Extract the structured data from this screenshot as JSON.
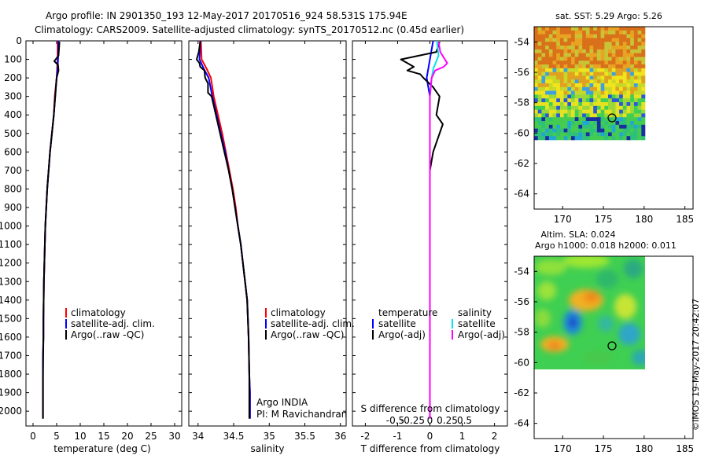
{
  "title_line1": "Argo profile: IN 2901350_193 12-May-2017 20170516_924 58.531S 175.94E",
  "title_line2": "Climatology: CARS2009. Satellite-adjusted climatology: synTS_20170512.nc (0.45d earlier)",
  "footer_stamp": "©IMOS 19-May-2017 20:42:07",
  "colors": {
    "climatology": "#ff0000",
    "satellite": "#0000ff",
    "argo": "#000000",
    "sal_satellite": "#00e5ee",
    "sal_argo": "#ff00ff"
  },
  "chart_data": [
    {
      "type": "line",
      "name": "temperature-profile",
      "xlabel": "temperature (deg C)",
      "xlim": [
        -1.5,
        31.5
      ],
      "xticks": [
        0,
        5,
        10,
        15,
        20,
        25,
        30
      ],
      "ylim": [
        0,
        2080
      ],
      "yticks": [
        0,
        100,
        200,
        300,
        400,
        500,
        600,
        700,
        800,
        900,
        1000,
        1100,
        1200,
        1300,
        1400,
        1500,
        1600,
        1700,
        1800,
        1900,
        2000
      ],
      "legend": [
        "climatology",
        "satellite-adj. clim.",
        "Argo(..raw -QC)"
      ],
      "series": [
        {
          "name": "climatology",
          "x": [
            5.2,
            5.2,
            5.1,
            5.0,
            4.6,
            4.4,
            4.0,
            3.6,
            3.3,
            3.0,
            2.8,
            2.6,
            2.5,
            2.4,
            2.3,
            2.2,
            2.2,
            2.1,
            2.1,
            2.1,
            2.1
          ],
          "y": [
            0,
            100,
            150,
            200,
            300,
            400,
            500,
            600,
            700,
            800,
            900,
            1000,
            1100,
            1200,
            1300,
            1500,
            1600,
            1700,
            1800,
            1900,
            2040
          ]
        },
        {
          "name": "satellite-adj. clim.",
          "x": [
            5.4,
            5.3,
            5.2,
            5.0,
            4.7,
            4.4,
            4.0,
            3.6,
            3.3,
            3.0,
            2.8,
            2.6,
            2.5,
            2.4,
            2.3,
            2.2,
            2.2,
            2.1,
            2.1,
            2.1
          ],
          "y": [
            0,
            100,
            150,
            200,
            300,
            400,
            500,
            600,
            700,
            800,
            900,
            1000,
            1100,
            1200,
            1300,
            1500,
            1600,
            1700,
            1800,
            2040
          ]
        },
        {
          "name": "Argo(..raw -QC)",
          "x": [
            5.6,
            5.4,
            4.5,
            5.3,
            5.4,
            5.0,
            4.7,
            4.4,
            4.0,
            3.6,
            3.3,
            3.0,
            2.8,
            2.6,
            2.5,
            2.4,
            2.3,
            2.2,
            2.2,
            2.1,
            2.1
          ],
          "y": [
            5,
            80,
            110,
            130,
            160,
            200,
            300,
            400,
            500,
            600,
            700,
            800,
            900,
            1000,
            1100,
            1200,
            1300,
            1500,
            1600,
            1800,
            2040
          ]
        }
      ]
    },
    {
      "type": "line",
      "name": "salinity-profile",
      "xlabel": "salinity",
      "xlim": [
        33.87,
        36.08
      ],
      "xticks": [
        34,
        34.5,
        35,
        35.5,
        36
      ],
      "ylim": [
        0,
        2080
      ],
      "legend": [
        "climatology",
        "satellite-adj. clim.",
        "Argo(..raw -QC)"
      ],
      "annotation": [
        "Argo INDIA",
        "PI: M Ravichandran"
      ],
      "series": [
        {
          "name": "climatology",
          "x": [
            34.04,
            34.05,
            34.12,
            34.18,
            34.22,
            34.28,
            34.34,
            34.39,
            34.44,
            34.49,
            34.53,
            34.56,
            34.6,
            34.63,
            34.66,
            34.69,
            34.71,
            34.72,
            34.73,
            34.73
          ],
          "y": [
            0,
            100,
            150,
            200,
            300,
            400,
            500,
            600,
            700,
            800,
            900,
            1000,
            1100,
            1200,
            1300,
            1400,
            1600,
            1800,
            1900,
            2040
          ]
        },
        {
          "name": "satellite-adj. clim.",
          "x": [
            34.03,
            34.02,
            34.08,
            34.15,
            34.2,
            34.26,
            34.32,
            34.38,
            34.43,
            34.48,
            34.52,
            34.56,
            34.6,
            34.63,
            34.66,
            34.69,
            34.71,
            34.72,
            34.73,
            34.73
          ],
          "y": [
            0,
            100,
            150,
            200,
            300,
            400,
            500,
            600,
            700,
            800,
            900,
            1000,
            1100,
            1200,
            1300,
            1400,
            1600,
            1800,
            1900,
            2040
          ]
        },
        {
          "name": "Argo(..raw -QC)",
          "x": [
            34.03,
            34.01,
            33.98,
            34.02,
            34.03,
            34.09,
            34.1,
            34.14,
            34.14,
            34.19,
            34.25,
            34.31,
            34.37,
            34.43,
            34.48,
            34.52,
            34.56,
            34.6,
            34.63,
            34.66,
            34.69,
            34.71,
            34.72,
            34.72
          ],
          "y": [
            5,
            60,
            100,
            120,
            140,
            160,
            200,
            230,
            280,
            300,
            400,
            500,
            600,
            700,
            800,
            900,
            1000,
            1100,
            1200,
            1300,
            1400,
            1600,
            1800,
            2040
          ]
        }
      ]
    },
    {
      "type": "line",
      "name": "difference-profile",
      "xlabel": "T difference from climatology",
      "xlabel_top": "S difference from climatology",
      "xlim": [
        -2.4,
        2.4
      ],
      "xticks": [
        -2,
        -1,
        0,
        1,
        2
      ],
      "sticks": [
        -0.5,
        -0.25,
        0,
        0.25,
        0.5
      ],
      "ylim": [
        0,
        2080
      ],
      "legend_groups": [
        {
          "header": "temperature",
          "items": [
            "satellite",
            "Argo(-adj)"
          ]
        },
        {
          "header": "salinity",
          "items": [
            "satellite",
            "Argo(-adj)"
          ]
        }
      ],
      "series": [
        {
          "name": "satellite",
          "x": [
            0.1,
            0.0,
            -0.1,
            0.0,
            0.0,
            0.0,
            0.0,
            0.0,
            0.0,
            0.0,
            0.0
          ],
          "y": [
            0,
            100,
            200,
            300,
            500,
            700,
            900,
            1200,
            1500,
            1800,
            2040
          ]
        },
        {
          "name": "Argo(-adj)",
          "x": [
            0.3,
            0.2,
            -0.9,
            -0.7,
            -0.5,
            -0.7,
            -0.3,
            -0.2,
            0.1,
            0.3,
            0.2,
            0.4,
            0.1,
            0.0,
            0.0,
            0.0,
            0.0,
            0.0,
            0.0
          ],
          "y": [
            5,
            60,
            100,
            120,
            140,
            160,
            180,
            200,
            250,
            300,
            400,
            450,
            600,
            700,
            900,
            1200,
            1500,
            1800,
            2040
          ]
        },
        {
          "name": "satellite",
          "x": [
            0.4,
            0.5,
            0.2,
            0.1,
            0.0,
            0.0,
            0.0,
            0.0,
            0.0,
            0.0
          ],
          "y": [
            0,
            80,
            150,
            200,
            300,
            500,
            800,
            1200,
            1600,
            2040
          ]
        },
        {
          "name": "Argo(-adj)",
          "x": [
            0.5,
            0.6,
            1.0,
            0.8,
            0.3,
            0.1,
            0.0,
            0.0,
            0.0,
            0.0,
            0.0
          ],
          "y": [
            5,
            60,
            120,
            140,
            160,
            200,
            300,
            500,
            800,
            1200,
            2040
          ]
        }
      ]
    },
    {
      "type": "heatmap",
      "name": "sst-map",
      "title": "sat. SST: 5.29 Argo: 5.26",
      "xticks": [
        170,
        175,
        180,
        185
      ],
      "yticks": [
        -54,
        -56,
        -58,
        -60,
        -62,
        -64
      ],
      "xlim": [
        166.5,
        186
      ],
      "ylim": [
        -65,
        -53
      ],
      "grid_extent": {
        "lon": [
          166.5,
          180
        ],
        "lat": [
          -60,
          -53
        ]
      },
      "marker": {
        "lon": 175.94,
        "lat": -58.53
      }
    },
    {
      "type": "heatmap",
      "name": "sla-map",
      "title": "Altim. SLA: 0.024",
      "subtitle": "Argo h1000: 0.018 h2000: 0.011",
      "xticks": [
        170,
        175,
        180,
        185
      ],
      "yticks": [
        -54,
        -56,
        -58,
        -60,
        -62,
        -64
      ],
      "xlim": [
        166.5,
        186
      ],
      "ylim": [
        -65,
        -53
      ],
      "grid_extent": {
        "lon": [
          166.5,
          180
        ],
        "lat": [
          -60,
          -53
        ]
      },
      "marker": {
        "lon": 175.94,
        "lat": -58.53
      }
    }
  ]
}
